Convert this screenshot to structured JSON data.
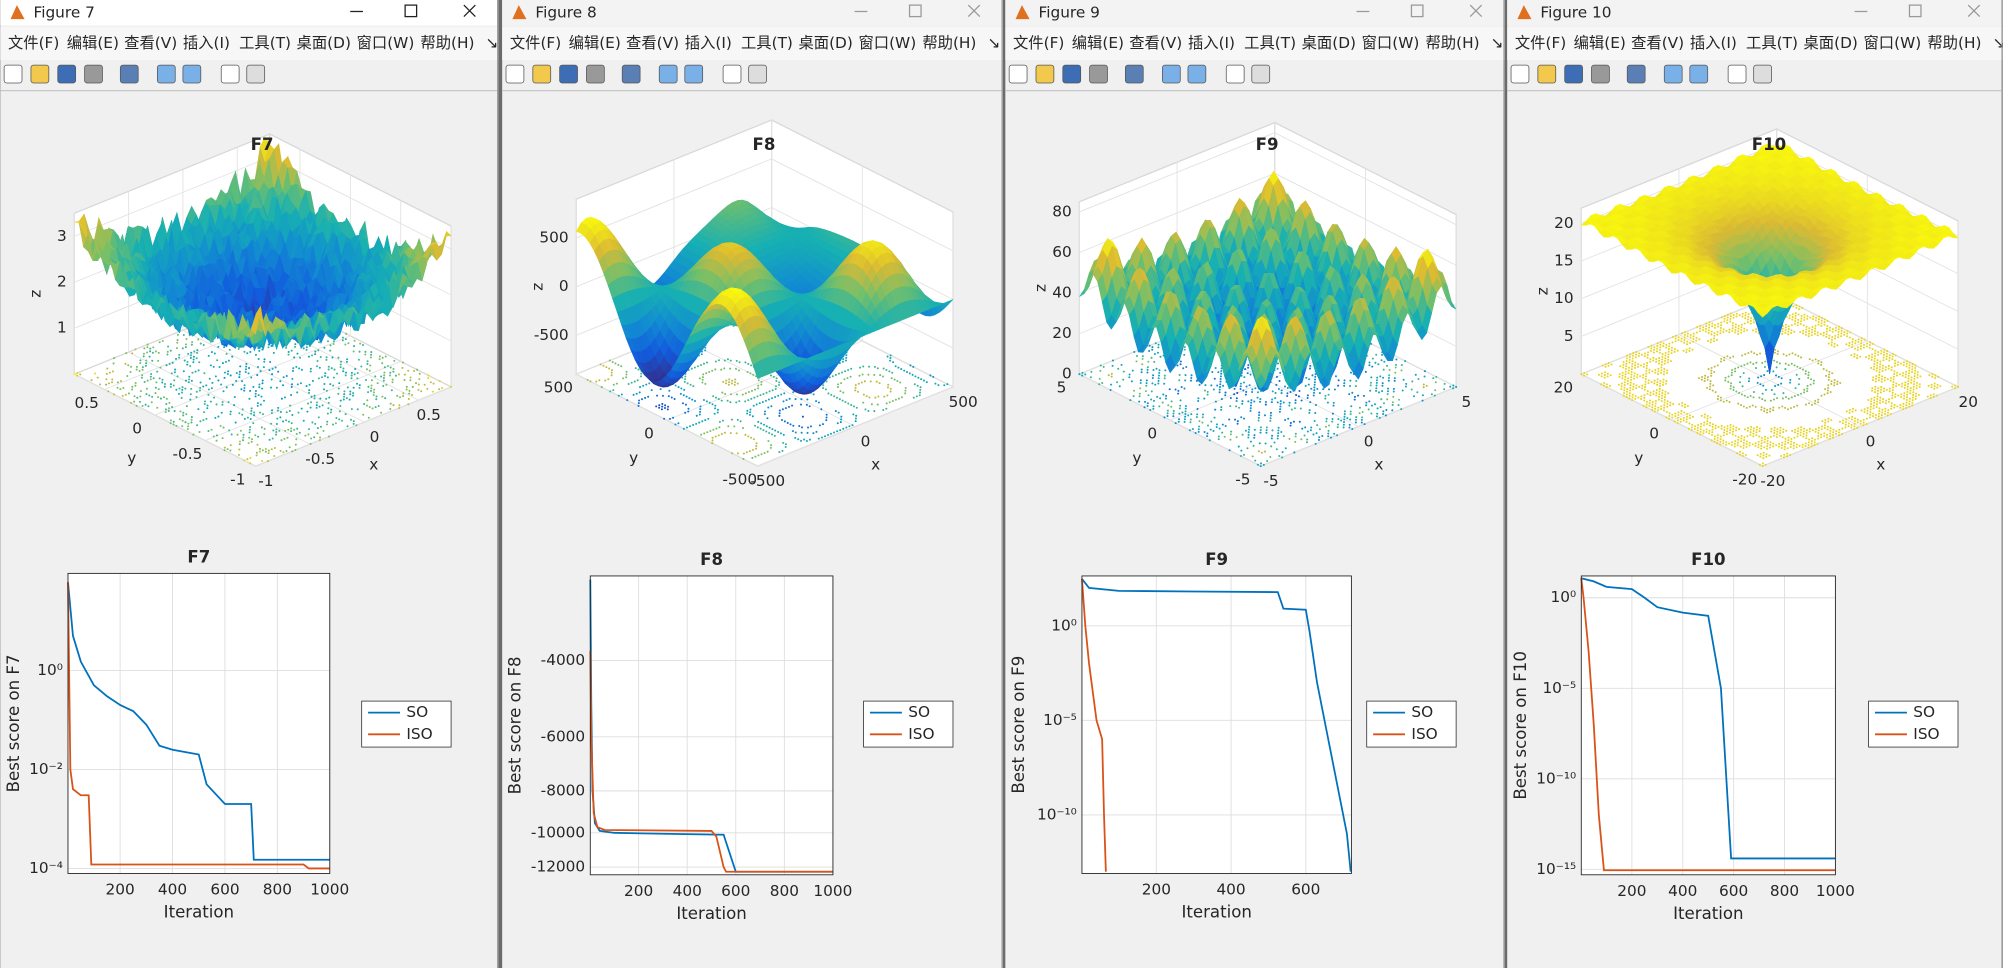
{
  "menu": [
    "文件(F)",
    "编辑(E)",
    "查看(V)",
    "插入(I)",
    "工具(T)",
    "桌面(D)",
    "窗口(W)",
    "帮助(H)",
    "↘"
  ],
  "windows": [
    {
      "title": "Figure 7",
      "surface": {
        "title": "F7",
        "xlabel": "x",
        "ylabel": "y",
        "zlabel": "z",
        "xlim": [
          -1,
          0.8
        ],
        "ylim": [
          -1,
          0.8
        ],
        "zlim": [
          0,
          3.5
        ],
        "xticks": [
          -1,
          -0.5,
          0,
          0.5
        ],
        "yticks": [
          -1,
          -0.5,
          0,
          0.5
        ],
        "zticks": [
          1,
          2,
          3
        ]
      },
      "chart": {
        "type": "line",
        "title": "F7",
        "xlabel": "Iteration",
        "ylabel": "Best score on F7",
        "xlim": [
          1,
          1000
        ],
        "xticks": [
          200,
          400,
          600,
          800,
          1000
        ],
        "ylim": [
          7.9e-05,
          91
        ],
        "log_y": true,
        "grid": true,
        "yticks": [
          {
            "value": 0.0001,
            "label": "10⁻⁴"
          },
          {
            "value": 0.01,
            "label": "10⁻²"
          },
          {
            "value": 1,
            "label": "10⁰"
          }
        ],
        "series": [
          {
            "name": "SO",
            "color": "#0072bd",
            "x": [
              1,
              20,
              50,
              100,
              150,
              200,
              250,
              300,
              350,
              400,
              500,
              530,
              600,
              700,
              710,
              1000
            ],
            "values": [
              60,
              5,
              1.5,
              0.5,
              0.3,
              0.2,
              0.15,
              0.08,
              0.03,
              0.025,
              0.02,
              0.005,
              0.002,
              0.002,
              0.00015,
              0.00015
            ]
          },
          {
            "name": "ISO",
            "color": "#d95319",
            "x": [
              1,
              10,
              20,
              50,
              80,
              90,
              900,
              920,
              1000
            ],
            "values": [
              60,
              0.01,
              0.004,
              0.003,
              0.003,
              0.00012,
              0.00012,
              0.0001,
              0.0001
            ]
          }
        ]
      }
    },
    {
      "title": "Figure 8",
      "surface": {
        "title": "F8",
        "xlabel": "x",
        "ylabel": "y",
        "zlabel": "z",
        "xlim": [
          -500,
          500
        ],
        "ylim": [
          -500,
          500
        ],
        "zlim": [
          -900,
          900
        ],
        "xticks": [
          -500,
          0,
          500
        ],
        "yticks": [
          -500,
          0,
          500
        ],
        "zticks": [
          -500,
          0,
          500
        ]
      },
      "chart": {
        "type": "line",
        "title": "F8",
        "xlabel": "Iteration",
        "ylabel": "Best score on F8",
        "xlim": [
          1,
          1000
        ],
        "xticks": [
          200,
          400,
          600,
          800,
          1000
        ],
        "ylim": [
          -12500,
          -2550
        ],
        "log_y": true,
        "grid": true,
        "yticks": [
          -12000,
          -10000,
          -8000,
          -6000,
          -4000
        ],
        "series": [
          {
            "name": "SO",
            "color": "#0072bd",
            "x": [
              1,
              5,
              10,
              20,
              40,
              100,
              300,
              550,
              600,
              1000
            ],
            "values": [
              -2600,
              -5000,
              -8000,
              -9500,
              -9900,
              -10000,
              -10050,
              -10100,
              -12300,
              -12300
            ]
          },
          {
            "name": "ISO",
            "color": "#d95319",
            "x": [
              1,
              5,
              15,
              30,
              60,
              500,
              520,
              550,
              560,
              1000
            ],
            "values": [
              -3800,
              -6000,
              -9000,
              -9700,
              -9850,
              -9900,
              -10200,
              -12000,
              -12300,
              -12300
            ]
          }
        ]
      }
    },
    {
      "title": "Figure 9",
      "surface": {
        "title": "F9",
        "xlabel": "x",
        "ylabel": "y",
        "zlabel": "z",
        "xlim": [
          -5,
          5
        ],
        "ylim": [
          -5,
          5
        ],
        "zlim": [
          0,
          85
        ],
        "xticks": [
          -5,
          0,
          5
        ],
        "yticks": [
          -5,
          0,
          5
        ],
        "zticks": [
          0,
          20,
          40,
          60,
          80
        ]
      },
      "chart": {
        "type": "line",
        "title": "F9",
        "xlabel": "Iteration",
        "ylabel": "Best score on F9",
        "xlim": [
          1,
          722
        ],
        "xticks": [
          200,
          400,
          600
        ],
        "ylim": [
          8e-14,
          430
        ],
        "log_y": true,
        "grid": true,
        "yticks": [
          {
            "value": 1e-10,
            "label": "10⁻¹⁰"
          },
          {
            "value": 1e-05,
            "label": "10⁻⁵"
          },
          {
            "value": 1,
            "label": "10⁰"
          }
        ],
        "series": [
          {
            "name": "SO",
            "color": "#0072bd",
            "x": [
              1,
              20,
              100,
              300,
              525,
              540,
              600,
              610,
              630,
              660,
              690,
              710,
              720
            ],
            "values": [
              300,
              100,
              70,
              65,
              60,
              8,
              7,
              0.5,
              0.001,
              1e-06,
              1e-09,
              1e-11,
              1e-13
            ]
          },
          {
            "name": "ISO",
            "color": "#d95319",
            "x": [
              1,
              10,
              20,
              40,
              55,
              60,
              65
            ],
            "values": [
              300,
              1,
              0.01,
              1e-05,
              1e-06,
              1e-10,
              1e-13
            ]
          }
        ]
      }
    },
    {
      "title": "Figure 10",
      "surface": {
        "title": "F10",
        "xlabel": "x",
        "ylabel": "y",
        "zlabel": "z",
        "xlim": [
          -20,
          20
        ],
        "ylim": [
          -20,
          20
        ],
        "zlim": [
          0,
          22
        ],
        "xticks": [
          -20,
          0,
          20
        ],
        "yticks": [
          -20,
          0,
          20
        ],
        "zticks": [
          5,
          10,
          15,
          20
        ]
      },
      "chart": {
        "type": "line",
        "title": "F10",
        "xlabel": "Iteration",
        "ylabel": "Best score on F10",
        "xlim": [
          1,
          1000
        ],
        "xticks": [
          200,
          400,
          600,
          800,
          1000
        ],
        "ylim": [
          5e-16,
          16
        ],
        "log_y": true,
        "grid": true,
        "yticks": [
          {
            "value": 1e-15,
            "label": "10⁻¹⁵"
          },
          {
            "value": 1e-10,
            "label": "10⁻¹⁰"
          },
          {
            "value": 1e-05,
            "label": "10⁻⁵"
          },
          {
            "value": 1,
            "label": "10⁰"
          }
        ],
        "series": [
          {
            "name": "SO",
            "color": "#0072bd",
            "x": [
              1,
              50,
              100,
              200,
              250,
              300,
              400,
              500,
              550,
              590,
              1000
            ],
            "values": [
              12,
              8,
              4,
              3,
              1,
              0.3,
              0.15,
              0.1,
              1e-05,
              4e-15,
              4e-15
            ]
          },
          {
            "name": "ISO",
            "color": "#d95319",
            "x": [
              1,
              10,
              30,
              50,
              70,
              90,
              1000
            ],
            "values": [
              12,
              1,
              0.001,
              1e-07,
              1e-12,
              8.9e-16,
              8.9e-16
            ]
          }
        ]
      }
    }
  ]
}
